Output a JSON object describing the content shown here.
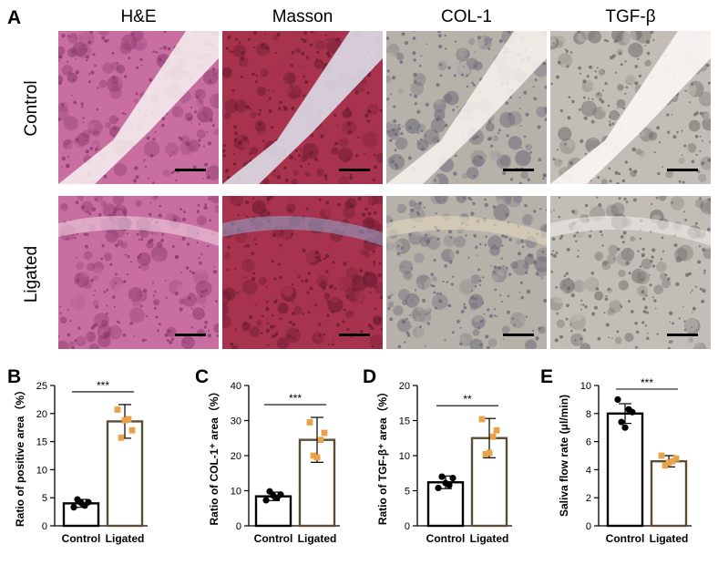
{
  "panels": {
    "A": "A",
    "B": "B",
    "C": "C",
    "D": "D",
    "E": "E"
  },
  "columns": [
    "H&E",
    "Masson",
    "COL-1",
    "TGF-β"
  ],
  "rows": [
    "Control",
    "Ligated"
  ],
  "tile_colors": {
    "HE": {
      "base": "#c86ea0",
      "dark": "#8c3a6e",
      "light": "#f2dbe8"
    },
    "Masson": {
      "base": "#a8334e",
      "dark": "#6a1a30",
      "light": "#8fa9cf"
    },
    "COL1": {
      "base": "#b6b2aa",
      "dark": "#6e6c7a",
      "light": "#e8dcc0"
    },
    "TGFb": {
      "base": "#c2bdb6",
      "dark": "#6e6a6a",
      "light": "#f4f2ef"
    }
  },
  "chart_data": [
    {
      "type": "bar",
      "panel": "B",
      "categories": [
        "Control",
        "Ligated"
      ],
      "values": [
        4.0,
        18.6
      ],
      "errors": [
        0.7,
        3.0
      ],
      "points": [
        [
          3.3,
          4.2,
          4.7,
          3.6,
          4.1
        ],
        [
          20.7,
          17.0,
          15.7,
          19.0,
          18.8
        ]
      ],
      "ylabel": "Ratio of positive area（%）",
      "ylim": [
        0,
        25
      ],
      "yticks": [
        0,
        5,
        10,
        15,
        20,
        25
      ],
      "significance": "***",
      "colors": {
        "Control": "#000000",
        "Ligated": "#5b4e34"
      }
    },
    {
      "type": "bar",
      "panel": "C",
      "categories": [
        "Control",
        "Ligated"
      ],
      "values": [
        8.4,
        24.5
      ],
      "errors": [
        1.2,
        6.4
      ],
      "points": [
        [
          7.3,
          8.9,
          9.8,
          7.9,
          8.6
        ],
        [
          29.5,
          26.5,
          20.0,
          24.5,
          19.5
        ]
      ],
      "ylabel": "Ratio of COL-1⁺ area（%）",
      "ylim": [
        0,
        40
      ],
      "yticks": [
        0,
        10,
        20,
        30,
        40
      ],
      "significance": "***",
      "colors": {
        "Control": "#000000",
        "Ligated": "#5b4e34"
      }
    },
    {
      "type": "bar",
      "panel": "D",
      "categories": [
        "Control",
        "Ligated"
      ],
      "values": [
        6.2,
        12.5
      ],
      "errors": [
        0.9,
        2.8
      ],
      "points": [
        [
          5.4,
          6.8,
          7.0,
          5.8,
          6.1
        ],
        [
          15.2,
          13.6,
          10.2,
          12.7,
          10.4
        ]
      ],
      "ylabel": "Ratio of TGF-β⁺ area（%）",
      "ylim": [
        0,
        20
      ],
      "yticks": [
        0,
        5,
        10,
        15,
        20
      ],
      "significance": "**",
      "colors": {
        "Control": "#000000",
        "Ligated": "#5b4e34"
      }
    },
    {
      "type": "bar",
      "panel": "E",
      "categories": [
        "Control",
        "Ligated"
      ],
      "values": [
        8.0,
        4.6
      ],
      "errors": [
        0.7,
        0.4
      ],
      "points": [
        [
          9.0,
          8.1,
          7.4,
          8.3,
          7.0
        ],
        [
          5.0,
          4.8,
          4.3,
          4.6,
          4.5
        ]
      ],
      "ylabel": "Saliva flow rate (μl/min)",
      "ylim": [
        0,
        10
      ],
      "yticks": [
        0,
        2,
        4,
        6,
        8,
        10
      ],
      "significance": "***",
      "colors": {
        "Control": "#000000",
        "Ligated": "#5b4e34"
      }
    }
  ]
}
